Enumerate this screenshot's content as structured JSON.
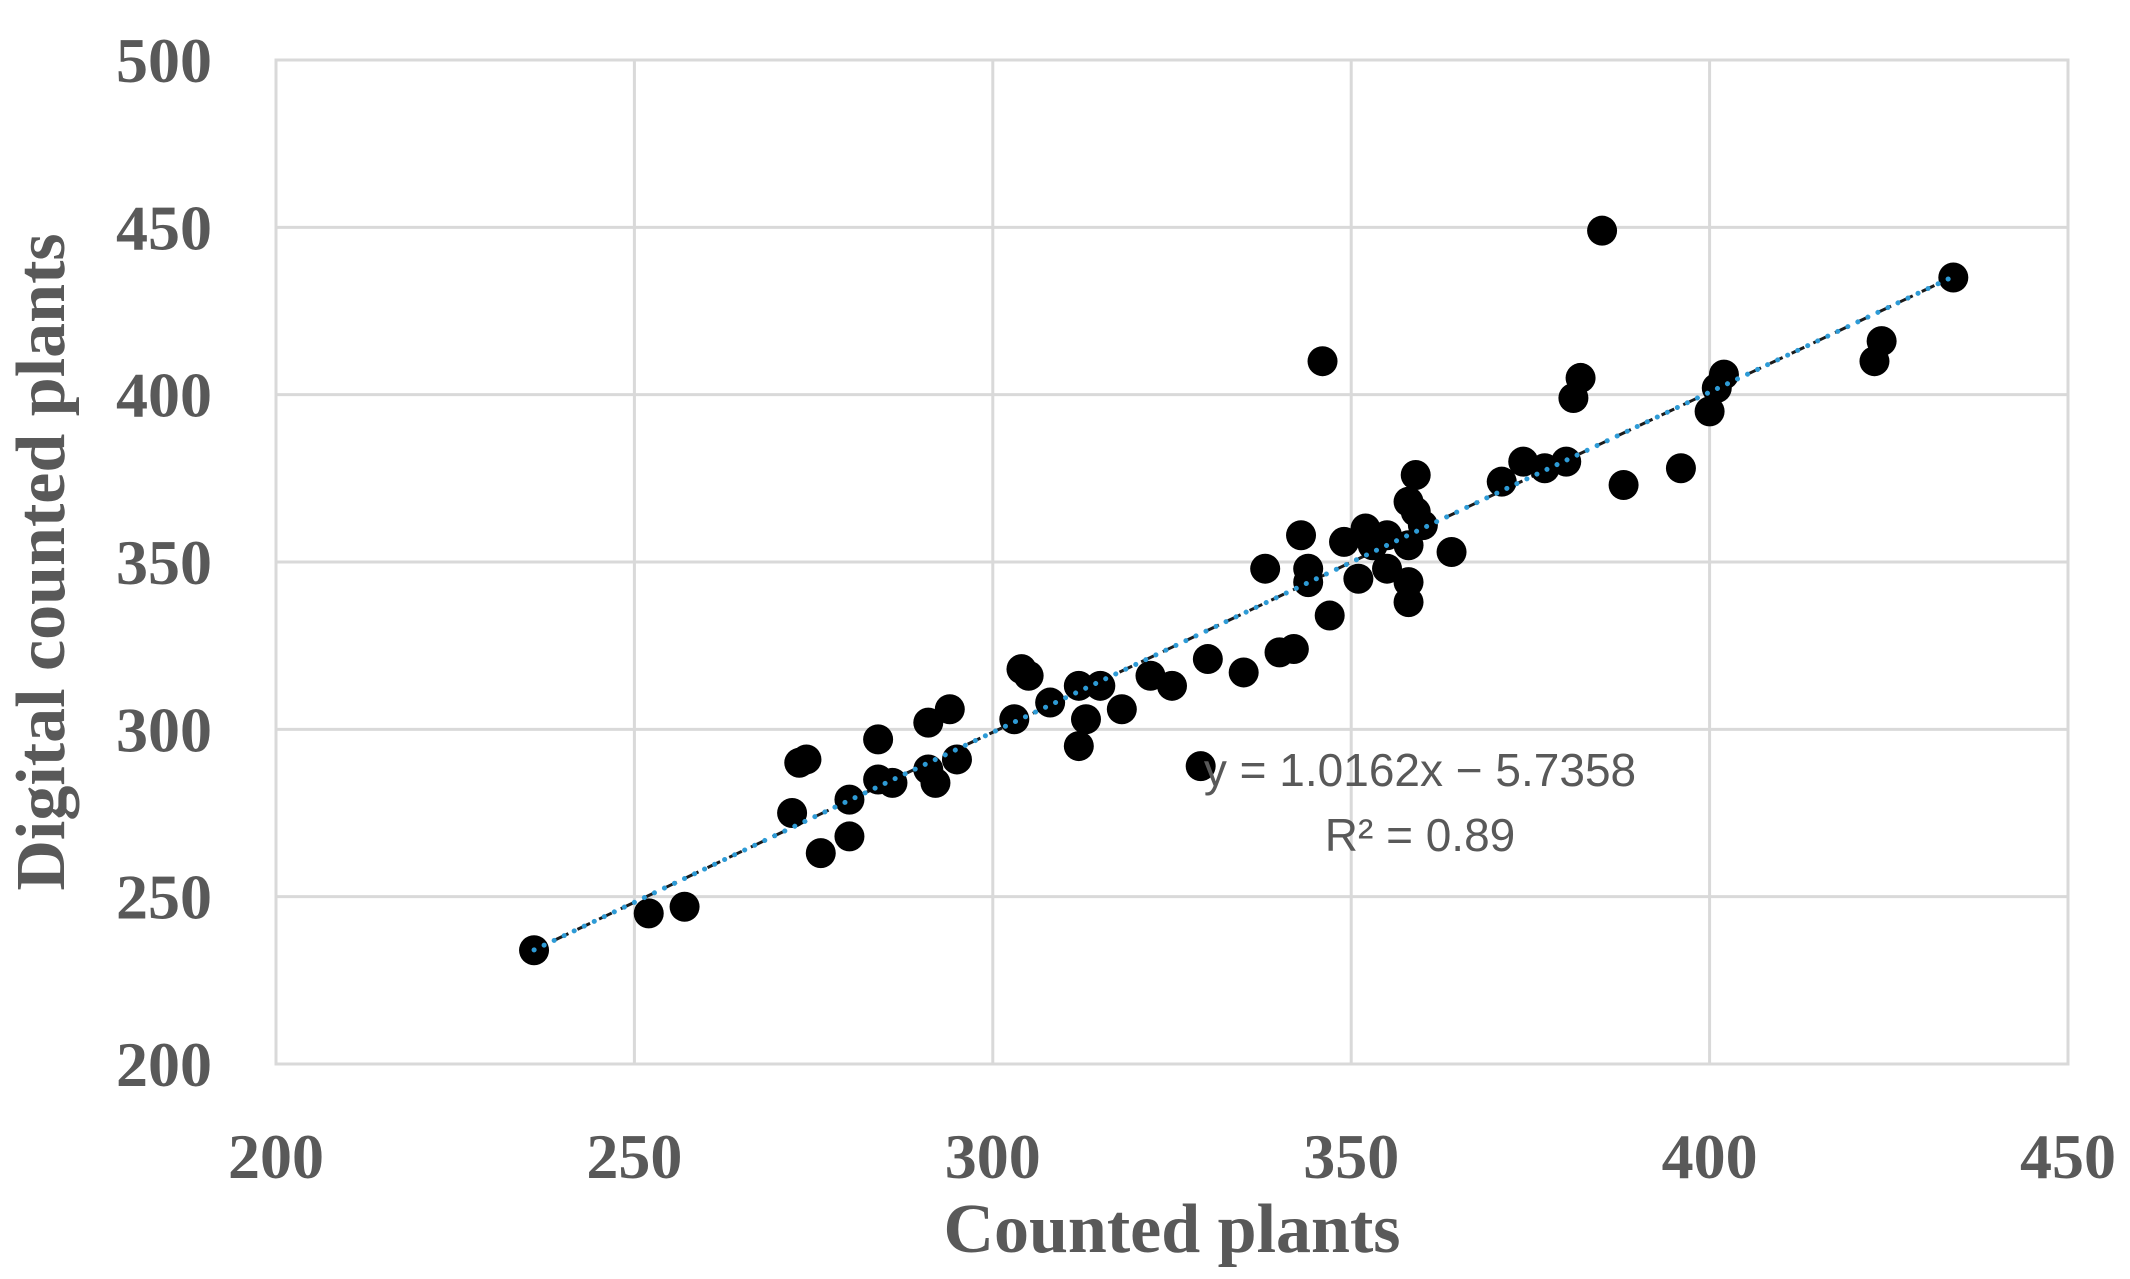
{
  "chart_data": {
    "type": "scatter",
    "xlabel": "Counted plants",
    "ylabel": "Digital counted plants",
    "xlim": [
      200,
      450
    ],
    "ylim": [
      200,
      500
    ],
    "xticks": [
      "200",
      "250",
      "300",
      "350",
      "400",
      "450"
    ],
    "yticks": [
      "200",
      "250",
      "300",
      "350",
      "400",
      "450",
      "500"
    ],
    "grid": true,
    "legend": "none",
    "marker_color": "#000000",
    "trendline": {
      "type": "linear",
      "slope": 1.0162,
      "intercept": -5.7358,
      "x_range": [
        236,
        434
      ],
      "color": "#2e9bd6",
      "style": "dotted",
      "equation_label": "y = 1.0162x − 5.7358",
      "r2_label": "R² = 0.89"
    },
    "points": [
      [
        236,
        234
      ],
      [
        252,
        245
      ],
      [
        257,
        247
      ],
      [
        272,
        275
      ],
      [
        273,
        290
      ],
      [
        274,
        291
      ],
      [
        276,
        263
      ],
      [
        280,
        268
      ],
      [
        280,
        279
      ],
      [
        284,
        297
      ],
      [
        284,
        285
      ],
      [
        286,
        284
      ],
      [
        291,
        302
      ],
      [
        292,
        284
      ],
      [
        291,
        288
      ],
      [
        294,
        306
      ],
      [
        295,
        291
      ],
      [
        303,
        303
      ],
      [
        304,
        318
      ],
      [
        305,
        316
      ],
      [
        308,
        308
      ],
      [
        312,
        295
      ],
      [
        312,
        313
      ],
      [
        313,
        303
      ],
      [
        315,
        313
      ],
      [
        318,
        306
      ],
      [
        322,
        316
      ],
      [
        325,
        313
      ],
      [
        329,
        289
      ],
      [
        330,
        321
      ],
      [
        335,
        317
      ],
      [
        338,
        348
      ],
      [
        340,
        323
      ],
      [
        342,
        324
      ],
      [
        343,
        358
      ],
      [
        344,
        344
      ],
      [
        344,
        348
      ],
      [
        346,
        410
      ],
      [
        347,
        334
      ],
      [
        349,
        356
      ],
      [
        351,
        345
      ],
      [
        352,
        360
      ],
      [
        353,
        355
      ],
      [
        355,
        358
      ],
      [
        355,
        348
      ],
      [
        358,
        338
      ],
      [
        358,
        344
      ],
      [
        358,
        355
      ],
      [
        358,
        368
      ],
      [
        359,
        376
      ],
      [
        359,
        365
      ],
      [
        360,
        361
      ],
      [
        364,
        353
      ],
      [
        371,
        374
      ],
      [
        374,
        380
      ],
      [
        377,
        378
      ],
      [
        380,
        380
      ],
      [
        381,
        399
      ],
      [
        382,
        405
      ],
      [
        385,
        449
      ],
      [
        388,
        373
      ],
      [
        396,
        378
      ],
      [
        400,
        395
      ],
      [
        401,
        402
      ],
      [
        402,
        406
      ],
      [
        423,
        410
      ],
      [
        424,
        416
      ],
      [
        434,
        435
      ]
    ]
  }
}
